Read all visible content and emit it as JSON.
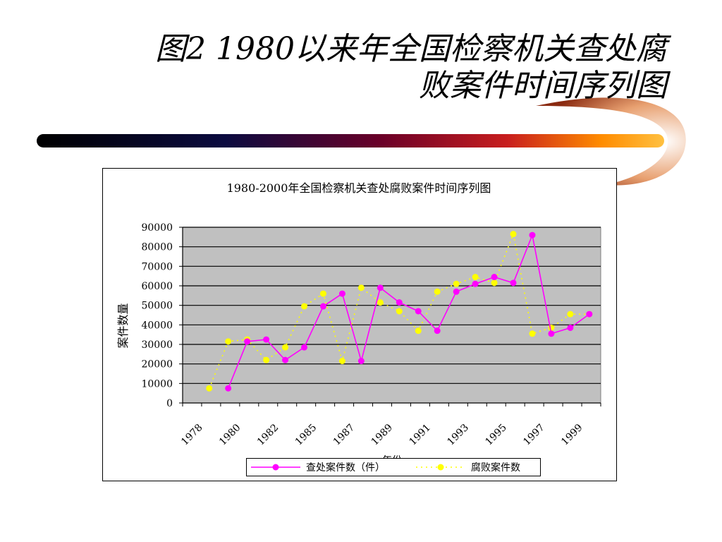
{
  "slide": {
    "title_line1": "图2  1980以来年全国检察机关查处腐",
    "title_line2": "败案件时间序列图"
  },
  "colors": {
    "series1": "#ff00ff",
    "series2": "#ffff00",
    "plot_bg": "#c0c0c0",
    "gridline": "#000000",
    "bar_gradient": [
      "#000000",
      "#0a0a3a",
      "#6b0028",
      "#c81e1e",
      "#ff8c00",
      "#ffc040"
    ]
  },
  "chart_data": {
    "type": "line",
    "title": "1980-2000年全国检察机关查处腐败案件时间序列图",
    "xlabel": "年份",
    "ylabel": "案件数量",
    "ylim": [
      0,
      90000
    ],
    "yticks": [
      "0",
      "10000",
      "20000",
      "30000",
      "40000",
      "50000",
      "60000",
      "70000",
      "80000",
      "90000"
    ],
    "xlim": [
      1978,
      2000
    ],
    "xticks": [
      "1978",
      "1980",
      "1982",
      "1985",
      "1987",
      "1989",
      "1991",
      "1993",
      "1995",
      "1997",
      "1999"
    ],
    "grid": true,
    "legend": "bottom",
    "series": [
      {
        "name": "查处案件数（件）",
        "style": "solid",
        "x": [
          1980.4,
          1981.4,
          1982.4,
          1983.4,
          1984.4,
          1985.4,
          1986.4,
          1987.4,
          1988.4,
          1989.4,
          1990.4,
          1991.4,
          1992.4,
          1993.4,
          1994.4,
          1995.4,
          1996.4,
          1997.4,
          1998.4,
          1999.4
        ],
        "values": [
          7500,
          31500,
          32500,
          22000,
          28500,
          49500,
          56000,
          21500,
          59000,
          51500,
          47000,
          37000,
          57000,
          61000,
          64500,
          61500,
          86000,
          35500,
          38500,
          45500
        ]
      },
      {
        "name": "腐败案件数",
        "style": "dotted",
        "x": [
          1979.4,
          1980.4,
          1981.4,
          1982.4,
          1983.4,
          1984.4,
          1985.4,
          1986.4,
          1987.4,
          1988.4,
          1989.4,
          1990.4,
          1991.4,
          1992.4,
          1993.4,
          1994.4,
          1995.4,
          1996.4,
          1997.4,
          1998.4,
          1999.4
        ],
        "values": [
          7500,
          31500,
          32500,
          22000,
          28500,
          49500,
          56000,
          21500,
          59000,
          51500,
          47000,
          37000,
          57000,
          61000,
          64500,
          61500,
          86500,
          35500,
          38500,
          45500,
          45500
        ]
      }
    ]
  }
}
